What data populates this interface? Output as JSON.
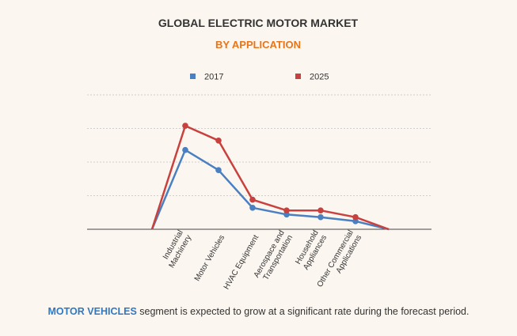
{
  "chart_data": {
    "type": "line",
    "title": "GLOBAL ELECTRIC MOTOR MARKET",
    "subtitle": "BY APPLICATION",
    "categories": [
      "",
      "Industrial Machinery",
      "Motor Vehicles",
      "HVAC Equipment",
      "Aerospace and Transportation",
      "Household Appliances",
      "Other Commercial Applications",
      ""
    ],
    "tick_lines": [
      [],
      [
        "Industrial",
        "Machinery"
      ],
      [
        "Motor Vehicles"
      ],
      [
        "HVAC Equipment"
      ],
      [
        "Aerospace and",
        "Transportation"
      ],
      [
        "Household",
        "Appliances"
      ],
      [
        "Other Commercial",
        "Applications"
      ],
      []
    ],
    "series": [
      {
        "name": "2017",
        "color": "#4a7fc1",
        "values": [
          0,
          59,
          44,
          16,
          11,
          9,
          6,
          0
        ]
      },
      {
        "name": "2025",
        "color": "#c9413e",
        "values": [
          0,
          77,
          66,
          22,
          14,
          14,
          9,
          0
        ]
      }
    ],
    "ylim": [
      0,
      100
    ],
    "grid": true,
    "legend": "top-center",
    "colors": {
      "title": "#333333",
      "subtitle": "#e8751a",
      "grid": "#cfcfcf",
      "axis": "#444444",
      "highlight": "#2f78c4"
    }
  },
  "footer": {
    "highlight": "MOTOR VEHICLES",
    "rest": " segment is expected to grow at a significant rate during the forecast period."
  }
}
